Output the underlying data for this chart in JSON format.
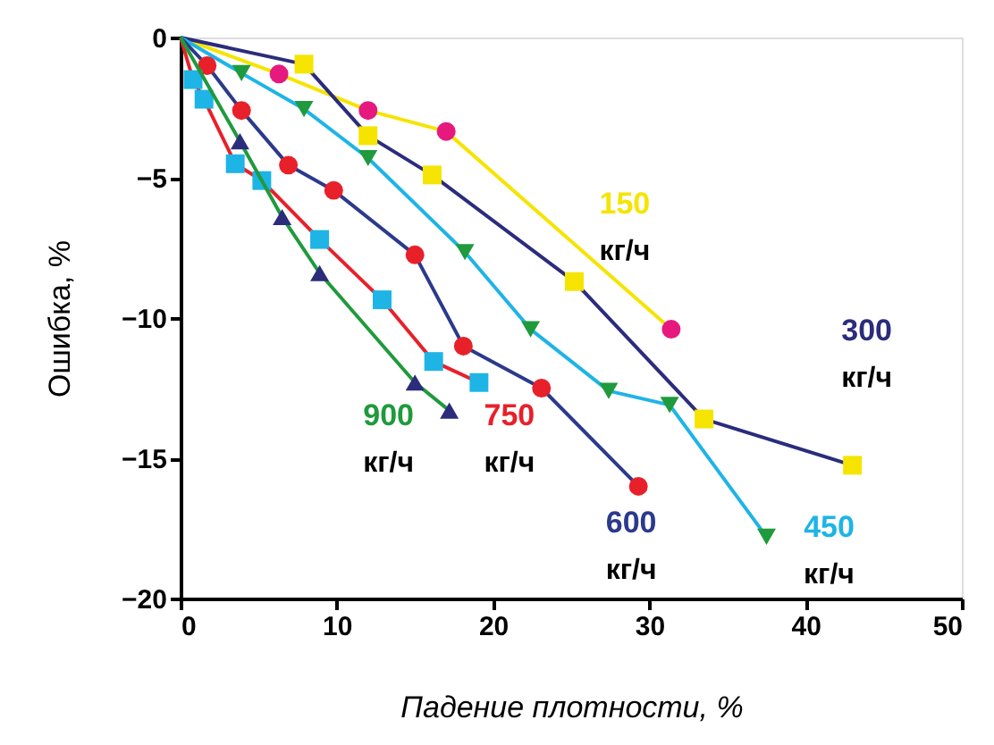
{
  "chart_data": {
    "type": "line",
    "xlabel": "Падение плотности, %",
    "ylabel": "Ошибка, %",
    "xlim": [
      0,
      50
    ],
    "ylim": [
      -20,
      0
    ],
    "xticks": [
      0,
      10,
      20,
      30,
      40,
      50
    ],
    "yticks": [
      0,
      -5,
      -10,
      -15,
      -20
    ],
    "grid": false,
    "series": [
      {
        "name": "150 кг/ч",
        "color": "#f5e400",
        "marker": "circle",
        "x": [
          0,
          6.3,
          12.0,
          17.0,
          31.4
        ],
        "values": [
          0,
          -1.3,
          -2.6,
          -3.35,
          -10.4
        ],
        "colors": [
          null,
          "#e6197f",
          "#e6197f",
          "#e6197f",
          "#e6197f"
        ]
      },
      {
        "name": "300 кг/ч",
        "color": "#2b2c7c",
        "marker": "square",
        "x": [
          0,
          7.9,
          12.0,
          16.1,
          25.2,
          33.5,
          43.0
        ],
        "values": [
          0,
          -0.95,
          -3.5,
          -4.9,
          -8.7,
          -13.6,
          -15.25
        ],
        "colors": [
          null,
          "#f5e400",
          "#f5e400",
          "#f5e400",
          "#f5e400",
          "#f5e400",
          "#f5e400"
        ]
      },
      {
        "name": "450 кг/ч",
        "color": "#1eb4e6",
        "marker": "triangle-down",
        "x": [
          0,
          3.9,
          7.9,
          12.0,
          18.2,
          22.4,
          27.4,
          31.3,
          37.5
        ],
        "values": [
          0,
          -1.27,
          -2.55,
          -4.3,
          -7.65,
          -10.4,
          -12.6,
          -13.1,
          -17.8
        ],
        "colors": [
          null,
          "#1f9a3c",
          "#1f9a3c",
          "#1f9a3c",
          "#1f9a3c",
          "#1f9a3c",
          "#1f9a3c",
          "#1f9a3c",
          "#1f9a3c"
        ]
      },
      {
        "name": "600 кг/ч",
        "color": "#2b3a8c",
        "marker": "circle",
        "x": [
          0,
          1.7,
          3.9,
          6.9,
          9.8,
          15.0,
          18.1,
          23.1,
          29.3
        ],
        "values": [
          0,
          -1.0,
          -2.6,
          -4.55,
          -5.45,
          -7.75,
          -11.0,
          -12.5,
          -16.0
        ],
        "colors": [
          null,
          "#e8202a",
          "#e8202a",
          "#e8202a",
          "#e8202a",
          "#e8202a",
          "#e8202a",
          "#e8202a",
          "#e8202a"
        ]
      },
      {
        "name": "750 кг/ч",
        "color": "#e8202a",
        "marker": "square",
        "x": [
          0,
          0.8,
          1.5,
          3.5,
          5.2,
          8.9,
          12.9,
          16.2,
          19.1
        ],
        "values": [
          0,
          -1.5,
          -2.2,
          -4.5,
          -5.1,
          -7.2,
          -9.35,
          -11.55,
          -12.3
        ],
        "colors": [
          null,
          "#1eb4e6",
          "#1eb4e6",
          "#1eb4e6",
          "#1eb4e6",
          "#1eb4e6",
          "#1eb4e6",
          "#1eb4e6",
          "#1eb4e6"
        ]
      },
      {
        "name": "900 кг/ч",
        "color": "#1f9a3c",
        "marker": "triangle",
        "x": [
          0,
          3.8,
          6.5,
          8.9,
          15.0,
          17.2
        ],
        "values": [
          0,
          -3.7,
          -6.4,
          -8.4,
          -12.3,
          -13.3
        ],
        "colors": [
          null,
          "#2b2c7c",
          "#2b2c7c",
          "#2b2c7c",
          "#2b2c7c",
          "#2b2c7c"
        ]
      }
    ]
  }
}
